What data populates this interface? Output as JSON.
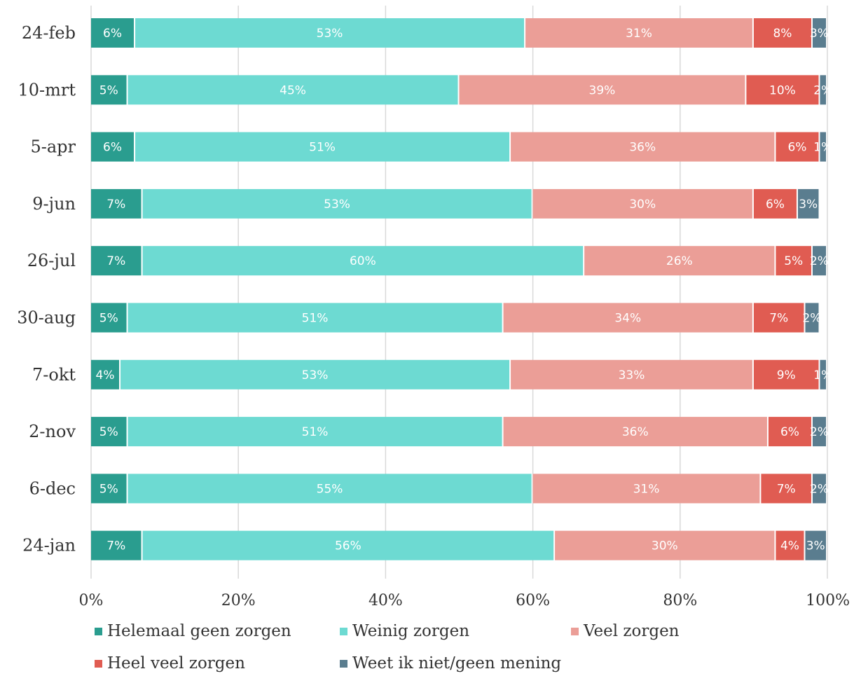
{
  "chart_data": {
    "type": "bar",
    "orientation": "horizontal",
    "stacked": true,
    "categories": [
      "24-feb",
      "10-mrt",
      "5-apr",
      "9-jun",
      "26-jul",
      "30-aug",
      "7-okt",
      "2-nov",
      "6-dec",
      "24-jan"
    ],
    "series": [
      {
        "name": "Helemaal geen zorgen",
        "color": "#2a9d8f",
        "values": [
          6,
          5,
          6,
          7,
          7,
          5,
          4,
          5,
          5,
          7
        ],
        "labels": [
          "6%",
          "5%",
          "6%",
          "7%",
          "7%",
          "5%",
          "4%",
          "5%",
          "5%",
          "7%"
        ]
      },
      {
        "name": "Weinig zorgen",
        "color": "#6ddad2",
        "values": [
          53,
          45,
          51,
          53,
          60,
          51,
          53,
          51,
          55,
          56
        ],
        "labels": [
          "53%",
          "45%",
          "51%",
          "53%",
          "60%",
          "51%",
          "53%",
          "51%",
          "55%",
          "56%"
        ]
      },
      {
        "name": "Veel zorgen",
        "color": "#eb9e97",
        "values": [
          31,
          39,
          36,
          30,
          26,
          34,
          33,
          36,
          31,
          30
        ],
        "labels": [
          "31%",
          "39%",
          "36%",
          "30%",
          "26%",
          "34%",
          "33%",
          "36%",
          "31%",
          "30%"
        ]
      },
      {
        "name": "Heel veel zorgen",
        "color": "#e05c52",
        "values": [
          8,
          10,
          6,
          6,
          5,
          7,
          9,
          6,
          7,
          4
        ],
        "labels": [
          "8%",
          "10%",
          "6%",
          "6%",
          "5%",
          "7%",
          "9%",
          "6%",
          "7%",
          "4%"
        ]
      },
      {
        "name": "Weet ik niet/geen mening",
        "color": "#5a7d8f",
        "values": [
          3,
          2,
          1,
          3,
          2,
          2,
          1,
          2,
          2,
          3
        ],
        "labels": [
          "3%",
          "2%",
          "1%",
          "3%",
          "2%",
          "2%",
          "1%",
          "2%",
          "2%",
          "3%"
        ]
      }
    ],
    "xlim": [
      0,
      100
    ],
    "xticks": [
      "0%",
      "20%",
      "40%",
      "60%",
      "80%",
      "100%"
    ],
    "grid": "vertical",
    "legend_position": "bottom"
  }
}
